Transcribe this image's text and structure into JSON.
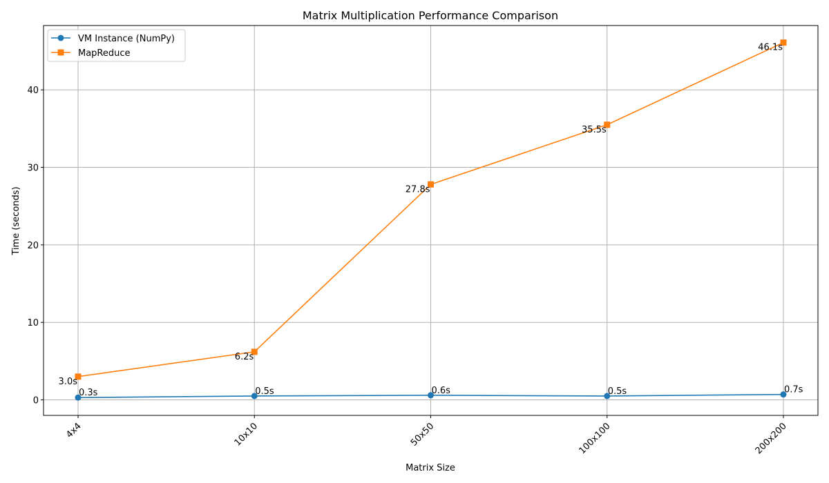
{
  "chart_data": {
    "type": "line",
    "title": "Matrix Multiplication Performance Comparison",
    "xlabel": "Matrix Size",
    "ylabel": "Time (seconds)",
    "categories": [
      "4x4",
      "10x10",
      "50x50",
      "100x100",
      "200x200"
    ],
    "ylim": [
      -2,
      48.3
    ],
    "yticks": [
      0,
      10,
      20,
      30,
      40
    ],
    "grid": true,
    "legend_position": "top-left",
    "series": [
      {
        "name": "VM Instance (NumPy)",
        "values": [
          0.3,
          0.5,
          0.6,
          0.5,
          0.7
        ],
        "labels": [
          "0.3s",
          "0.5s",
          "0.6s",
          "0.5s",
          "0.7s"
        ],
        "color": "#1f77b4",
        "marker": "circle"
      },
      {
        "name": "MapReduce",
        "values": [
          3.0,
          6.2,
          27.8,
          35.5,
          46.1
        ],
        "labels": [
          "3.0s",
          "6.2s",
          "27.8s",
          "35.5s",
          "46.1s"
        ],
        "color": "#ff7f0e",
        "marker": "square"
      }
    ]
  }
}
